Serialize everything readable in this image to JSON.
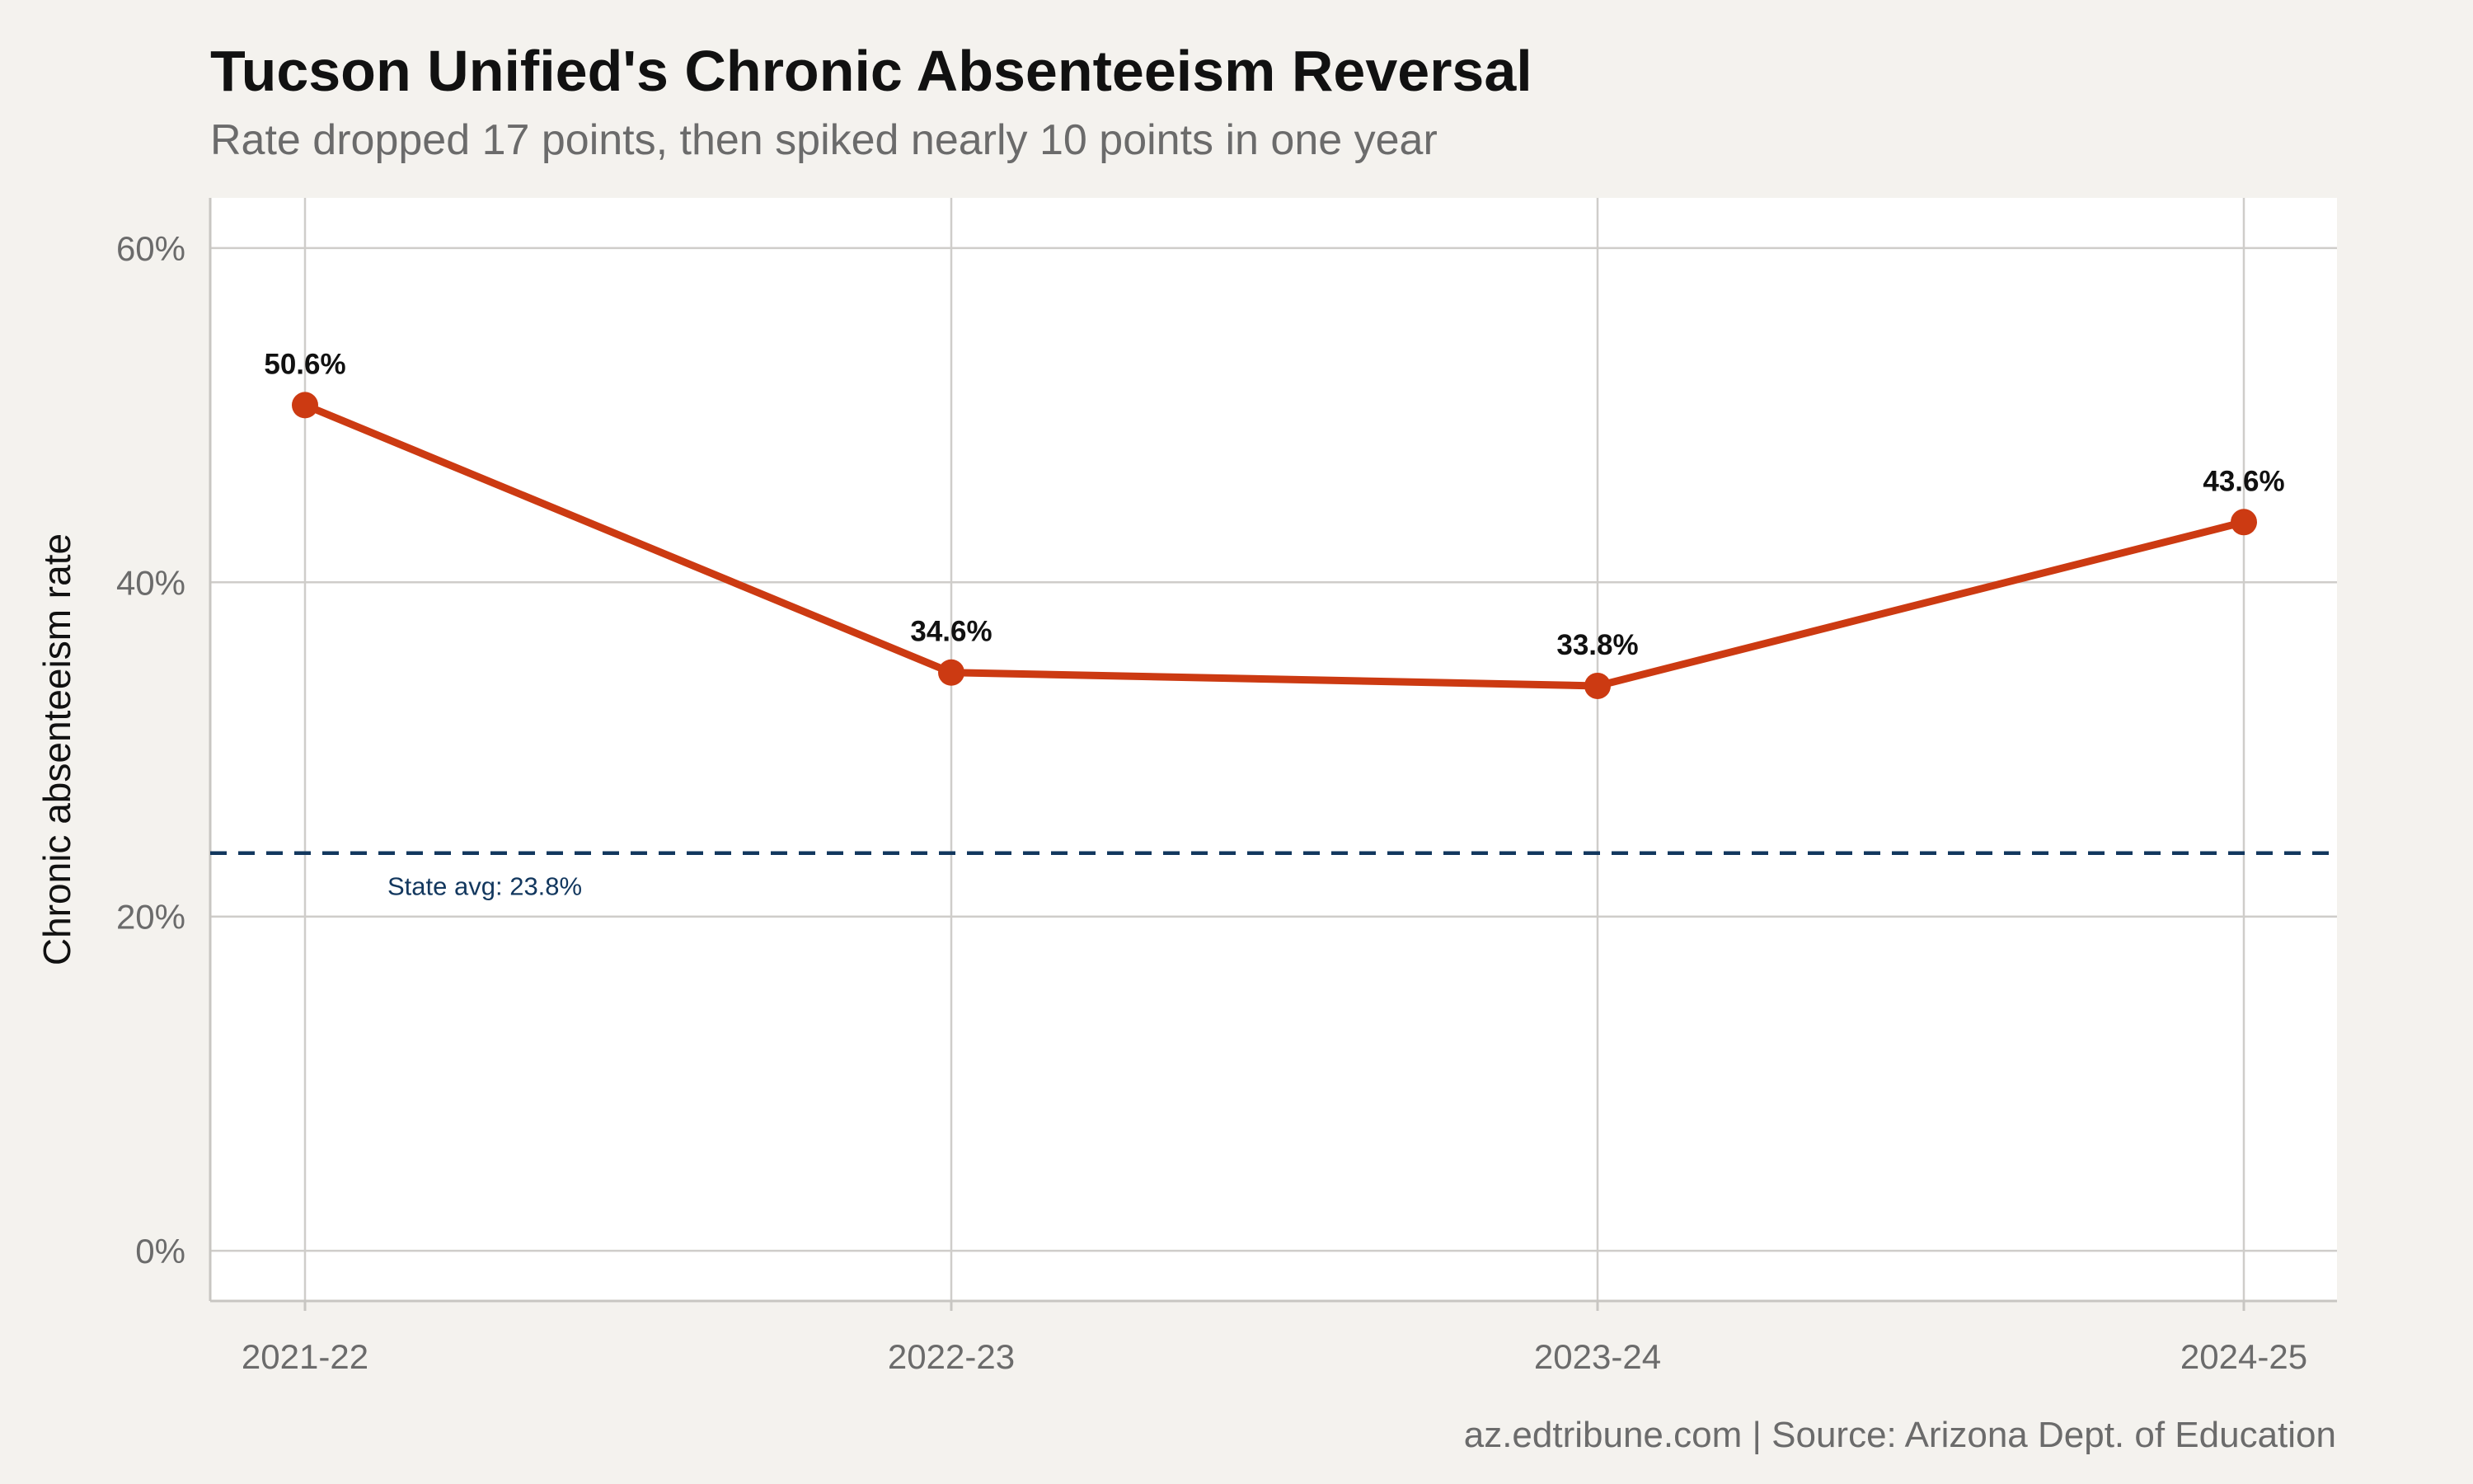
{
  "chart_data": {
    "type": "line",
    "title": "Tucson Unified's Chronic Absenteeism Reversal",
    "subtitle": "Rate dropped 17 points, then spiked nearly 10 points in one year",
    "ylabel": "Chronic absenteeism rate",
    "xlabel": "",
    "categories": [
      "2021-22",
      "2022-23",
      "2023-24",
      "2024-25"
    ],
    "series": [
      {
        "values": [
          50.6,
          34.6,
          33.8,
          43.6
        ],
        "data_labels": [
          "50.6%",
          "34.6%",
          "33.8%",
          "43.6%"
        ],
        "color": "#cc3a12"
      }
    ],
    "ylim": [
      -3,
      63
    ],
    "yticks": [
      0,
      20,
      40,
      60
    ],
    "ytick_labels": [
      "0%",
      "20%",
      "40%",
      "60%"
    ],
    "reference_line": {
      "value": 23.8,
      "label": "State avg: 23.8%",
      "color": "#12375e",
      "style": "dashed"
    },
    "grid": true,
    "caption": "az.edtribune.com | Source: Arizona Dept. of Education"
  }
}
